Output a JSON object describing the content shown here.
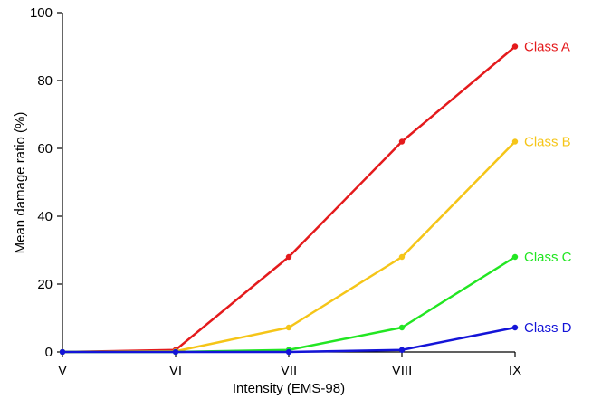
{
  "chart_data": {
    "type": "line",
    "xlabel": "Intensity (EMS-98)",
    "ylabel": "Mean damage ratio (%)",
    "categories": [
      "V",
      "VI",
      "VII",
      "VIII",
      "IX"
    ],
    "ylim": [
      0,
      100
    ],
    "yticks": [
      0,
      20,
      40,
      60,
      80,
      100
    ],
    "grid": false,
    "legend": "inline labels at line ends",
    "series": [
      {
        "name": "Class A",
        "color": "#e41a1c",
        "values": [
          0,
          0.6,
          28,
          62,
          90
        ]
      },
      {
        "name": "Class B",
        "color": "#f5c518",
        "values": [
          0,
          0.2,
          7.2,
          28,
          62
        ]
      },
      {
        "name": "Class C",
        "color": "#22e622",
        "values": [
          0,
          0,
          0.6,
          7.2,
          28
        ]
      },
      {
        "name": "Class D",
        "color": "#1414d8",
        "values": [
          0,
          0,
          0,
          0.6,
          7.2
        ]
      }
    ]
  }
}
